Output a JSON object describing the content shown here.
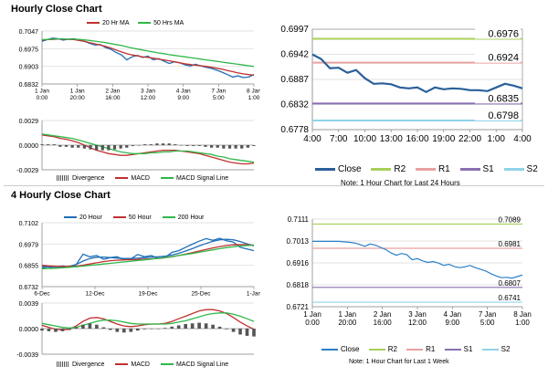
{
  "sections": {
    "hourly_title": "Hourly Close Chart",
    "four_hourly_title": "4 Hourly Close Chart"
  },
  "legends": {
    "ma1": [
      "20 Hr MA",
      "50 Hrs MA"
    ],
    "macd": [
      "Divergence",
      "MACD",
      "MACD Signal Line"
    ],
    "ma2": [
      "20 Hour",
      "50 Hour",
      "200 Hour"
    ],
    "pivots": [
      "Close",
      "R2",
      "R1",
      "S1",
      "S2"
    ]
  },
  "notes": {
    "hourly": "Note: 1 Hour Chart for Last 24 Hours",
    "weekly": "Note: 1 Hour Chart for Last 1 Week"
  },
  "colors": {
    "blue": "#1f6fb5",
    "red": "#c0312f",
    "green": "#2fb84a",
    "pink": "#e8a0a0",
    "lime": "#a8cf5a",
    "purple": "#8a6fb1",
    "cyan": "#8fd3e8",
    "navy": "#2a5f9a"
  },
  "chart_data": [
    {
      "id": "hourly_ma",
      "type": "line",
      "title": "Hourly Close Chart",
      "ylim": [
        0.6832,
        0.7047
      ],
      "yticks": [
        "0.7047",
        "0.6975",
        "0.6903",
        "0.6832"
      ],
      "xticks": [
        "1 Jan\n0:00",
        "1 Jan\n20:00",
        "2 Jan\n16:00",
        "3 Jan\n12:00",
        "4 Jan\n9:00",
        "7 Jan\n5:00",
        "8 Jan\n1:00"
      ],
      "series": [
        {
          "name": "Close",
          "color": "#1f6fb5",
          "values": [
            0.7005,
            0.7012,
            0.7018,
            0.7016,
            0.701,
            0.7014,
            0.7016,
            0.701,
            0.7005,
            0.6997,
            0.699,
            0.6992,
            0.698,
            0.6973,
            0.696,
            0.695,
            0.693,
            0.6942,
            0.6948,
            0.694,
            0.6945,
            0.693,
            0.6935,
            0.6925,
            0.6915,
            0.6922,
            0.6918,
            0.691,
            0.6905,
            0.6912,
            0.6905,
            0.69,
            0.6895,
            0.6888,
            0.688,
            0.687,
            0.686,
            0.6865,
            0.6858,
            0.686,
            0.687
          ]
        },
        {
          "name": "20 Hr MA",
          "color": "#c0312f",
          "values": [
            0.701,
            0.7012,
            0.7013,
            0.7014,
            0.7014,
            0.7013,
            0.7012,
            0.7009,
            0.7005,
            0.7,
            0.6995,
            0.699,
            0.6985,
            0.6978,
            0.697,
            0.6962,
            0.6955,
            0.695,
            0.6946,
            0.6942,
            0.694,
            0.6937,
            0.6933,
            0.693,
            0.6926,
            0.6922,
            0.6918,
            0.6914,
            0.6911,
            0.6908,
            0.6906,
            0.6903,
            0.69,
            0.6896,
            0.6892,
            0.6887,
            0.6882,
            0.6877,
            0.6873,
            0.687,
            0.6868
          ]
        },
        {
          "name": "50 Hrs MA",
          "color": "#2fb84a",
          "values": [
            0.7012,
            0.7013,
            0.7014,
            0.7015,
            0.7015,
            0.7014,
            0.7014,
            0.7013,
            0.7011,
            0.7009,
            0.7006,
            0.7003,
            0.7,
            0.6996,
            0.6992,
            0.6988,
            0.6983,
            0.6978,
            0.6974,
            0.697,
            0.6966,
            0.6962,
            0.6958,
            0.6955,
            0.6951,
            0.6948,
            0.6945,
            0.6942,
            0.6939,
            0.6936,
            0.6933,
            0.693,
            0.6927,
            0.6924,
            0.6921,
            0.6918,
            0.6915,
            0.6912,
            0.6909,
            0.6906,
            0.6903
          ]
        }
      ]
    },
    {
      "id": "hourly_macd",
      "type": "line",
      "ylim": [
        -0.0029,
        0.0029
      ],
      "yticks": [
        "0.0029",
        "0.0000",
        "-0.0029"
      ],
      "series": [
        {
          "name": "MACD",
          "color": "#c0312f",
          "values": [
            0.0012,
            0.0011,
            0.001,
            0.0008,
            0.0007,
            0.0005,
            0.0003,
            0.0,
            -0.0003,
            -0.0006,
            -0.0008,
            -0.001,
            -0.0011,
            -0.0012,
            -0.0012,
            -0.0011,
            -0.001,
            -0.0009,
            -0.0008,
            -0.0007,
            -0.0006,
            -0.0006,
            -0.0006,
            -0.0007,
            -0.0008,
            -0.0009,
            -0.001,
            -0.0012,
            -0.0014,
            -0.0016,
            -0.0018,
            -0.002,
            -0.0021,
            -0.0022,
            -0.0022,
            -0.0021
          ]
        },
        {
          "name": "MACD Signal Line",
          "color": "#2fb84a",
          "values": [
            0.0013,
            0.0012,
            0.0011,
            0.001,
            0.0009,
            0.0008,
            0.0006,
            0.0004,
            0.0002,
            0.0,
            -0.0002,
            -0.0004,
            -0.0006,
            -0.0008,
            -0.0009,
            -0.001,
            -0.001,
            -0.001,
            -0.0009,
            -0.0009,
            -0.0008,
            -0.0008,
            -0.0007,
            -0.0007,
            -0.0007,
            -0.0008,
            -0.0009,
            -0.001,
            -0.0011,
            -0.0013,
            -0.0014,
            -0.0016,
            -0.0017,
            -0.0018,
            -0.0019,
            -0.002
          ]
        },
        {
          "name": "Divergence",
          "color": "#555555",
          "values": [
            0.0001,
            0.0001,
            0.0001,
            -0.0002,
            -0.0002,
            -0.0003,
            -0.0003,
            -0.0004,
            -0.0005,
            -0.0006,
            -0.0006,
            -0.0006,
            -0.0005,
            -0.0004,
            -0.0003,
            -0.0001,
            0.0,
            0.0001,
            0.0001,
            0.0002,
            0.0002,
            0.0002,
            0.0001,
            0.0,
            -0.0001,
            -0.0001,
            -0.0001,
            -0.0002,
            -0.0003,
            -0.0003,
            -0.0004,
            -0.0004,
            -0.0004,
            -0.0004,
            -0.0003,
            -0.0001
          ]
        }
      ]
    },
    {
      "id": "hourly_pivot",
      "type": "line",
      "note": "Note: 1 Hour Chart for Last 24 Hours",
      "ylim": [
        0.6778,
        0.6997
      ],
      "yticks": [
        "0.6997",
        "0.6942",
        "0.6887",
        "0.6832",
        "0.6778"
      ],
      "xticks": [
        "4:00",
        "7:00",
        "10:00",
        "13:00",
        "16:00",
        "19:00",
        "22:00",
        "1:00",
        "4:00"
      ],
      "levels": [
        {
          "name": "R2",
          "value": 0.6976,
          "label": "0.6976",
          "color": "#a8cf5a"
        },
        {
          "name": "R1",
          "value": 0.6924,
          "label": "0.6924",
          "color": "#e8a0a0"
        },
        {
          "name": "S1",
          "value": 0.6835,
          "label": "0.6835",
          "color": "#8a6fb1"
        },
        {
          "name": "S2",
          "value": 0.6798,
          "label": "0.6798",
          "color": "#8fd3e8"
        }
      ],
      "series": [
        {
          "name": "Close",
          "color": "#2a5f9a",
          "values": [
            0.6942,
            0.6932,
            0.6912,
            0.6913,
            0.6902,
            0.6908,
            0.689,
            0.6878,
            0.6879,
            0.6877,
            0.687,
            0.6868,
            0.687,
            0.686,
            0.687,
            0.6866,
            0.6868,
            0.6867,
            0.6864,
            0.6864,
            0.6862,
            0.687,
            0.6878,
            0.6874,
            0.6868
          ]
        }
      ]
    },
    {
      "id": "four_hourly_ma",
      "type": "line",
      "title": "4 Hourly Close Chart",
      "ylim": [
        0.6732,
        0.7102
      ],
      "yticks": [
        "0.7102",
        "0.6979",
        "0.6855",
        "0.6732"
      ],
      "xticks": [
        "6-Dec",
        "12-Dec",
        "19-Dec",
        "25-Dec",
        "1-Jan"
      ],
      "series": [
        {
          "name": "Close",
          "color": "#1f6fb5",
          "values": [
            0.684,
            0.6848,
            0.6838,
            0.6852,
            0.6845,
            0.686,
            0.692,
            0.6905,
            0.6912,
            0.689,
            0.69,
            0.6905,
            0.6888,
            0.6893,
            0.6918,
            0.6905,
            0.6912,
            0.6895,
            0.69,
            0.693,
            0.694,
            0.696,
            0.6978,
            0.6995,
            0.701,
            0.7,
            0.7012,
            0.6998,
            0.699,
            0.696,
            0.695,
            0.694
          ]
        },
        {
          "name": "20 Hour",
          "color": "#1f6fb5",
          "values": [
            0.685,
            0.6845,
            0.6842,
            0.6845,
            0.685,
            0.686,
            0.688,
            0.6895,
            0.6902,
            0.6903,
            0.69,
            0.6897,
            0.6895,
            0.6895,
            0.6897,
            0.69,
            0.6903,
            0.6905,
            0.6908,
            0.6915,
            0.6925,
            0.6938,
            0.6952,
            0.6968,
            0.6982,
            0.6994,
            0.7003,
            0.7006,
            0.7003,
            0.6993,
            0.698,
            0.6968
          ]
        },
        {
          "name": "50 Hour",
          "color": "#c0312f",
          "values": [
            0.6855,
            0.6852,
            0.685,
            0.6849,
            0.6849,
            0.6851,
            0.6856,
            0.6863,
            0.687,
            0.6877,
            0.6882,
            0.6885,
            0.6887,
            0.6888,
            0.6889,
            0.6891,
            0.6893,
            0.6896,
            0.69,
            0.6905,
            0.6912,
            0.692,
            0.6929,
            0.6938,
            0.6947,
            0.6956,
            0.6964,
            0.697,
            0.6974,
            0.6975,
            0.6974,
            0.6972
          ]
        },
        {
          "name": "200 Hour",
          "color": "#2fb84a",
          "values": [
            0.6835,
            0.6837,
            0.6839,
            0.6841,
            0.6844,
            0.6847,
            0.6851,
            0.6855,
            0.6859,
            0.6863,
            0.6867,
            0.6871,
            0.6875,
            0.6879,
            0.6883,
            0.6887,
            0.6891,
            0.6896,
            0.6901,
            0.6906,
            0.6912,
            0.6918,
            0.6924,
            0.6931,
            0.6938,
            0.6945,
            0.6952,
            0.6958,
            0.6963,
            0.6967,
            0.697,
            0.6972
          ]
        }
      ]
    },
    {
      "id": "four_hourly_macd",
      "type": "line",
      "ylim": [
        -0.0039,
        0.0039
      ],
      "yticks": [
        "0.0039",
        "0.0000",
        "-0.0039"
      ],
      "series": [
        {
          "name": "MACD",
          "color": "#c0312f",
          "values": [
            0.0005,
            0.0002,
            -0.0001,
            -0.0002,
            -0.0001,
            0.0004,
            0.0011,
            0.0016,
            0.0017,
            0.0015,
            0.0011,
            0.0007,
            0.0004,
            0.0003,
            0.0004,
            0.0006,
            0.0007,
            0.0007,
            0.0008,
            0.0011,
            0.0015,
            0.0019,
            0.0023,
            0.0027,
            0.0029,
            0.0029,
            0.0027,
            0.0023,
            0.0017,
            0.001,
            0.0004,
            -0.0001
          ]
        },
        {
          "name": "MACD Signal Line",
          "color": "#2fb84a",
          "values": [
            0.0008,
            0.0006,
            0.0004,
            0.0002,
            0.0001,
            0.0002,
            0.0005,
            0.0008,
            0.0011,
            0.0013,
            0.0013,
            0.0012,
            0.001,
            0.0008,
            0.0007,
            0.0007,
            0.0007,
            0.0007,
            0.0007,
            0.0008,
            0.001,
            0.0012,
            0.0015,
            0.0018,
            0.0021,
            0.0023,
            0.0024,
            0.0024,
            0.0022,
            0.0019,
            0.0015,
            0.0011
          ]
        },
        {
          "name": "Divergence",
          "color": "#555555",
          "values": [
            -0.0003,
            -0.0004,
            -0.0005,
            -0.0004,
            -0.0002,
            0.0002,
            0.0006,
            0.0008,
            0.0006,
            0.0002,
            -0.0002,
            -0.0005,
            -0.0006,
            -0.0005,
            -0.0003,
            -0.0001,
            0.0,
            0.0,
            0.0001,
            0.0003,
            0.0005,
            0.0007,
            0.0008,
            0.0009,
            0.0008,
            0.0006,
            0.0003,
            -0.0001,
            -0.0005,
            -0.0009,
            -0.0011,
            -0.0012
          ]
        }
      ]
    },
    {
      "id": "weekly_pivot",
      "type": "line",
      "note": "Note: 1 Hour Chart for Last 1 Week",
      "ylim": [
        0.6721,
        0.7111
      ],
      "yticks": [
        "0.7111",
        "0.7013",
        "0.6916",
        "0.6818",
        "0.6721"
      ],
      "xticks": [
        "1 Jan\n0:00",
        "1 Jan\n20:00",
        "2 Jan\n16:00",
        "3 Jan\n12:00",
        "4 Jan\n9:00",
        "7 Jan\n5:00",
        "8 Jan\n1:00"
      ],
      "levels": [
        {
          "name": "R2",
          "value": 0.7089,
          "label": "0.7089",
          "color": "#a8cf5a"
        },
        {
          "name": "R1",
          "value": 0.6981,
          "label": "0.6981",
          "color": "#e8a0a0"
        },
        {
          "name": "S1",
          "value": 0.6807,
          "label": "0.6807",
          "color": "#8a6fb1"
        },
        {
          "name": "S2",
          "value": 0.6741,
          "label": "0.6741",
          "color": "#8fd3e8"
        }
      ],
      "series": [
        {
          "name": "Close",
          "color": "#2a7fc8",
          "values": [
            0.7012,
            0.7012,
            0.7012,
            0.7012,
            0.7012,
            0.7012,
            0.701,
            0.7008,
            0.7005,
            0.6998,
            0.699,
            0.7,
            0.6995,
            0.6985,
            0.6975,
            0.696,
            0.695,
            0.6958,
            0.6952,
            0.693,
            0.6935,
            0.6925,
            0.6918,
            0.6922,
            0.6915,
            0.6905,
            0.691,
            0.69,
            0.6895,
            0.6898,
            0.6905,
            0.6895,
            0.6888,
            0.688,
            0.6868,
            0.6858,
            0.685,
            0.6852,
            0.6848,
            0.6855,
            0.6862
          ]
        }
      ]
    }
  ]
}
